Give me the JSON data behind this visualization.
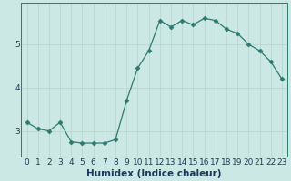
{
  "x": [
    0,
    1,
    2,
    3,
    4,
    5,
    6,
    7,
    8,
    9,
    10,
    11,
    12,
    13,
    14,
    15,
    16,
    17,
    18,
    19,
    20,
    21,
    22,
    23
  ],
  "y": [
    3.2,
    3.05,
    3.0,
    3.2,
    2.75,
    2.72,
    2.72,
    2.72,
    2.8,
    3.7,
    4.45,
    4.85,
    5.55,
    5.4,
    5.55,
    5.45,
    5.6,
    5.55,
    5.35,
    5.25,
    5.0,
    4.85,
    4.6,
    4.2
  ],
  "xlabel": "Humidex (Indice chaleur)",
  "line_color": "#2d7b6f",
  "marker": "D",
  "marker_size": 2.5,
  "bg_color": "#cce8e4",
  "grid_color": "#b8d8d4",
  "axis_bg": "#cce8e4",
  "ylim": [
    2.4,
    5.95
  ],
  "yticks": [
    3,
    4,
    5
  ],
  "xlim": [
    -0.5,
    23.5
  ],
  "xtick_labels": [
    "0",
    "1",
    "2",
    "3",
    "4",
    "5",
    "6",
    "7",
    "8",
    "9",
    "10",
    "11",
    "12",
    "13",
    "14",
    "15",
    "16",
    "17",
    "18",
    "19",
    "20",
    "21",
    "22",
    "23"
  ],
  "tick_fontsize": 6.5,
  "xlabel_fontsize": 7.5,
  "tick_color": "#1a3a5c",
  "spine_color": "#2d7b6f"
}
